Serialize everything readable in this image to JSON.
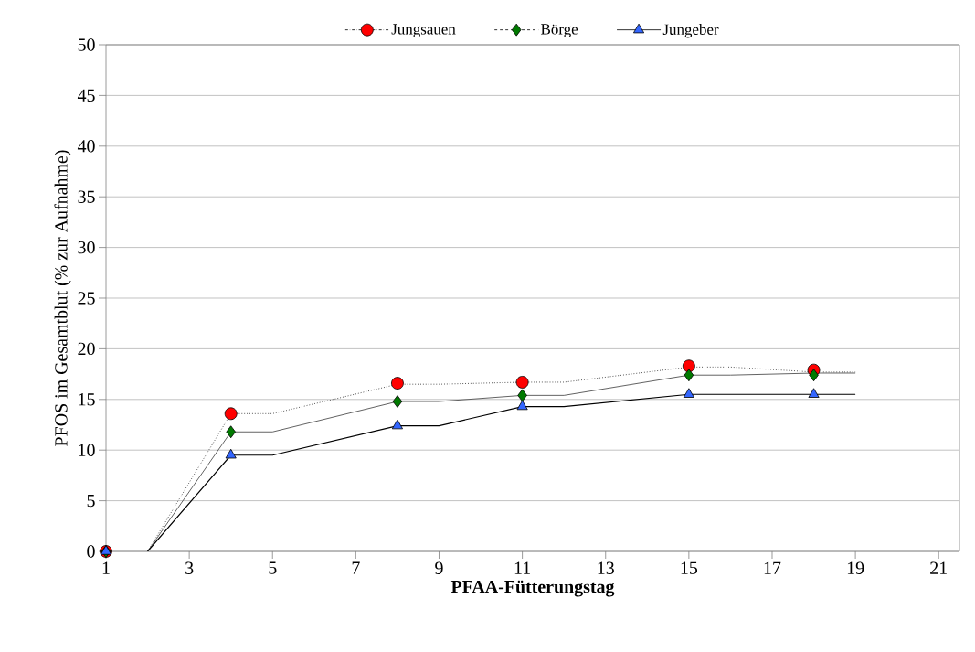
{
  "chart_data": {
    "type": "line",
    "xlabel": "PFAA-Fütterungstag",
    "ylabel": "PFOS im Gesamtblut (% zur Aufnahme)",
    "xlim": [
      1,
      21.5
    ],
    "ylim": [
      0,
      50
    ],
    "xticks": [
      1,
      3,
      5,
      7,
      9,
      11,
      13,
      15,
      17,
      19,
      21
    ],
    "yticks": [
      0,
      5,
      10,
      15,
      20,
      25,
      30,
      35,
      40,
      45,
      50
    ],
    "grid": "y",
    "legend": "top",
    "series": [
      {
        "type": "line",
        "color": "#303030",
        "line_style": "dotted",
        "x": [
          2,
          4,
          5,
          8,
          9,
          11,
          12,
          15,
          16,
          18,
          19
        ],
        "values": [
          0,
          13.6,
          13.6,
          16.5,
          16.5,
          16.7,
          16.7,
          18.2,
          18.2,
          17.7,
          17.7
        ]
      },
      {
        "type": "line",
        "color": "#505050",
        "line_style": "solid",
        "x": [
          2,
          4,
          5,
          8,
          9,
          11,
          12,
          15,
          16,
          18,
          19
        ],
        "values": [
          0,
          11.8,
          11.8,
          14.8,
          14.8,
          15.4,
          15.4,
          17.4,
          17.4,
          17.6,
          17.6
        ]
      },
      {
        "type": "line",
        "color": "#000000",
        "line_style": "solid",
        "x": [
          2,
          4,
          5,
          8,
          9,
          11,
          12,
          15,
          16,
          18,
          19
        ],
        "values": [
          0,
          9.5,
          9.5,
          12.4,
          12.4,
          14.3,
          14.3,
          15.5,
          15.5,
          15.5,
          15.5
        ]
      },
      {
        "type": "scatter",
        "name": "Jungsauen",
        "color": "#ff0000",
        "marker": "circle",
        "line_style": "dotted",
        "x": [
          1,
          4,
          8,
          11,
          15,
          18
        ],
        "values": [
          0,
          13.6,
          16.6,
          16.7,
          18.3,
          17.9
        ]
      },
      {
        "type": "scatter",
        "name": "Börge",
        "color": "#007a00",
        "marker": "diamond",
        "line_style": "dashed",
        "x": [
          1,
          4,
          8,
          11,
          15,
          18
        ],
        "values": [
          0,
          11.8,
          14.8,
          15.4,
          17.4,
          17.4
        ]
      },
      {
        "type": "scatter",
        "name": "Jungeber",
        "color": "#3366ff",
        "marker": "triangle",
        "line_style": "solid",
        "x": [
          1,
          4,
          8,
          11,
          15,
          18
        ],
        "values": [
          0,
          9.5,
          12.4,
          14.3,
          15.5,
          15.5
        ]
      }
    ]
  }
}
